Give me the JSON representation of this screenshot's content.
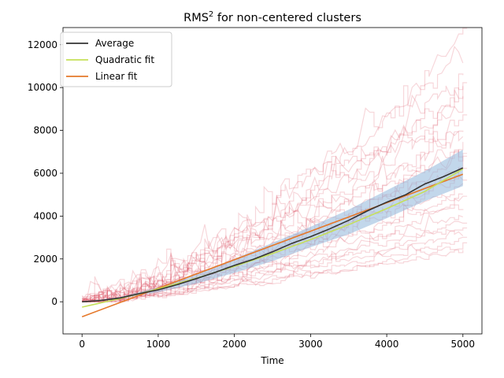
{
  "chart_data": {
    "type": "line",
    "title": "RMS",
    "title_superscript": "2",
    "title_suffix": " for non-centered clusters",
    "xlabel": "Time",
    "ylabel": "",
    "xlim": [
      -250,
      5250
    ],
    "ylim": [
      -1500,
      12800
    ],
    "x_ticks": [
      0,
      1000,
      2000,
      3000,
      4000,
      5000
    ],
    "y_ticks": [
      0,
      2000,
      4000,
      6000,
      8000,
      10000,
      12000
    ],
    "x_tick_labels": [
      "0",
      "1000",
      "2000",
      "3000",
      "4000",
      "5000"
    ],
    "y_tick_labels": [
      "0",
      "2000",
      "4000",
      "6000",
      "8000",
      "10000",
      "12000"
    ],
    "grid": false,
    "legend_position": "top-left",
    "legend": [
      "Average",
      "Quadratic fit",
      "Linear fit"
    ],
    "series": [
      {
        "name": "Average",
        "color": "#333333",
        "x": [
          0,
          250,
          500,
          750,
          1000,
          1250,
          1500,
          1750,
          2000,
          2250,
          2500,
          2750,
          3000,
          3250,
          3500,
          3750,
          4000,
          4250,
          4500,
          4750,
          5000
        ],
        "y": [
          0,
          60,
          180,
          380,
          560,
          800,
          1080,
          1380,
          1700,
          1980,
          2330,
          2720,
          3040,
          3400,
          3800,
          4250,
          4650,
          5000,
          5500,
          5850,
          6250
        ]
      },
      {
        "name": "Quadratic fit",
        "color": "#c6e05a",
        "x": [
          0,
          500,
          1000,
          1500,
          2000,
          2500,
          3000,
          3500,
          4000,
          4500,
          5000
        ],
        "y": [
          -250,
          150,
          600,
          1100,
          1650,
          2250,
          2900,
          3600,
          4350,
          5150,
          6200
        ]
      },
      {
        "name": "Linear fit",
        "color": "#e5782a",
        "x": [
          0,
          5000
        ],
        "y": [
          -700,
          5950
        ]
      }
    ],
    "error_band": {
      "color": "#8fb7da",
      "x": [
        0,
        500,
        1000,
        1500,
        2000,
        2500,
        3000,
        3500,
        4000,
        4500,
        5000
      ],
      "lower": [
        0,
        150,
        450,
        850,
        1350,
        1900,
        2550,
        3150,
        3900,
        4700,
        5400
      ],
      "upper": [
        0,
        220,
        680,
        1280,
        2000,
        2750,
        3500,
        4300,
        5200,
        6100,
        7100
      ]
    },
    "individual_runs_color": "#d9475c",
    "individual_runs_final_values": [
      12200,
      11500,
      10500,
      10000,
      9800,
      9400,
      8800,
      8200,
      7800,
      7400,
      7000,
      6600,
      6300,
      6000,
      5800,
      5500,
      5200,
      4900,
      4500,
      4100,
      3800,
      3500,
      3200,
      2900,
      2600,
      2400
    ]
  }
}
